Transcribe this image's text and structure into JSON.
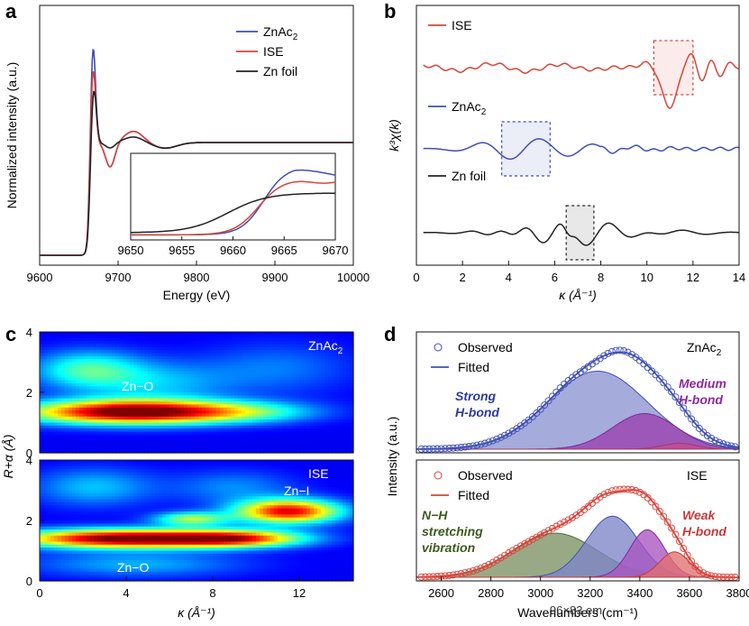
{
  "chart_data": [
    {
      "panel": "a",
      "type": "line",
      "xlabel": "Energy (eV)",
      "ylabel": "Normalized intensity (a.u.)",
      "xlim": [
        9600,
        10000
      ],
      "xticks": [
        "9600",
        "9700",
        "9800",
        "9900",
        "10000"
      ],
      "legend": [
        "ZnAc",
        "ISE",
        "Zn foil"
      ],
      "legend_sub": "2",
      "legend_position": "top-right",
      "series": [
        {
          "name": "ZnAc2",
          "color": "#3f4fb5",
          "peak_energy": 9668,
          "peak": 1.0
        },
        {
          "name": "ISE",
          "color": "#d9433a",
          "peak_energy": 9668,
          "peak": 0.78
        },
        {
          "name": "Zn foil",
          "color": "#222222",
          "peak_energy": 9669,
          "peak": 0.55
        }
      ],
      "inset": {
        "xlim": [
          9650,
          9670
        ],
        "xticks": [
          "9650",
          "9655",
          "9660",
          "9665",
          "9670"
        ]
      }
    },
    {
      "panel": "b",
      "type": "line",
      "xlabel": "κ (Å⁻¹)",
      "ylabel": "k³χ(k)",
      "xlim": [
        0,
        14
      ],
      "xticks": [
        "0",
        "2",
        "4",
        "6",
        "8",
        "10",
        "12",
        "14"
      ],
      "series": [
        {
          "name": "ISE",
          "color": "#d9433a",
          "highlight": [
            10.3,
            12.0
          ]
        },
        {
          "name": "ZnAc",
          "sub": "2",
          "color": "#3f4fb5",
          "highlight": [
            3.7,
            5.8
          ]
        },
        {
          "name": "Zn foil",
          "color": "#222222",
          "highlight": [
            6.5,
            7.7
          ]
        }
      ]
    },
    {
      "panel": "c",
      "type": "heatmap",
      "xlabel": "κ (Å⁻¹)",
      "ylabel": "R+α (Å)",
      "xlim": [
        0,
        14.5
      ],
      "ylim": [
        0,
        4
      ],
      "xticks": [
        "0",
        "4",
        "8",
        "12"
      ],
      "yticks": [
        "0",
        "2",
        "4"
      ],
      "maps": [
        {
          "name": "ZnAc",
          "sub": "2",
          "annotations": [
            "Zn−O"
          ],
          "blobs": [
            {
              "k": 4.2,
              "r": 1.35,
              "sk": 3.4,
              "sr": 0.28,
              "a": 1.0
            },
            {
              "k": 9.5,
              "r": 1.35,
              "sk": 2.5,
              "sr": 0.25,
              "a": 0.25
            },
            {
              "k": 2.2,
              "r": 2.75,
              "sk": 1.8,
              "sr": 0.45,
              "a": 0.34
            },
            {
              "k": 5.5,
              "r": 2.3,
              "sk": 2.4,
              "sr": 0.5,
              "a": 0.2
            },
            {
              "k": 11.0,
              "r": 2.8,
              "sk": 2.5,
              "sr": 0.6,
              "a": 0.14
            }
          ]
        },
        {
          "name": "ISE",
          "annotations": [
            "Zn−I",
            "Zn−O"
          ],
          "blobs": [
            {
              "k": 4.0,
              "r": 1.4,
              "sk": 3.6,
              "sr": 0.22,
              "a": 1.0
            },
            {
              "k": 9.2,
              "r": 1.4,
              "sk": 2.2,
              "sr": 0.2,
              "a": 0.6
            },
            {
              "k": 11.5,
              "r": 2.3,
              "sk": 1.7,
              "sr": 0.28,
              "a": 0.85
            },
            {
              "k": 7.0,
              "r": 2.05,
              "sk": 1.2,
              "sr": 0.16,
              "a": 0.45
            },
            {
              "k": 2.5,
              "r": 3.1,
              "sk": 2.0,
              "sr": 0.45,
              "a": 0.22
            },
            {
              "k": 4.5,
              "r": 0.55,
              "sk": 3.5,
              "sr": 0.3,
              "a": 0.2
            },
            {
              "k": 9.0,
              "r": 3.1,
              "sk": 2.0,
              "sr": 0.4,
              "a": 0.16
            }
          ]
        }
      ]
    },
    {
      "panel": "d",
      "type": "area",
      "xlabel": "Wavenumbers (cm⁻¹)",
      "ylabel": "Intensity (a.u.)",
      "xlim": [
        2500,
        3800
      ],
      "xticks": [
        "2600",
        "2800",
        "3000",
        "3200",
        "3400",
        "3600",
        "3800"
      ],
      "top": {
        "name": "ZnAc",
        "sub": "2",
        "legend": [
          "Observed",
          "Fitted"
        ],
        "labels": [
          "Strong\nH-bond",
          "Medium\nH-bond"
        ],
        "components": [
          {
            "center": 3230,
            "width": 200,
            "amp": 0.92,
            "fill": "#8c93cf",
            "edge": "#3f4fb5"
          },
          {
            "center": 3420,
            "width": 130,
            "amp": 0.42,
            "fill": "#9a3fb0",
            "edge": "#7a2b96"
          },
          {
            "center": 3560,
            "width": 70,
            "amp": 0.07,
            "fill": "#c94a8a",
            "edge": "#a03a70"
          }
        ]
      },
      "bottom": {
        "name": "ISE",
        "legend": [
          "Observed",
          "Fitted"
        ],
        "labels": [
          "N−H\nstretching\nvibration",
          "Weak\nH-bond"
        ],
        "components": [
          {
            "center": 3060,
            "width": 170,
            "amp": 0.52,
            "fill": "#7e9163",
            "edge": "#52663a"
          },
          {
            "center": 3290,
            "width": 105,
            "amp": 0.72,
            "fill": "#7d85c8",
            "edge": "#3f4fb5"
          },
          {
            "center": 3430,
            "width": 70,
            "amp": 0.56,
            "fill": "#a855c0",
            "edge": "#7a2b96"
          },
          {
            "center": 3540,
            "width": 60,
            "amp": 0.3,
            "fill": "#e27070",
            "edge": "#c43b3b"
          }
        ]
      }
    }
  ],
  "labels": {
    "a": "a",
    "b": "b",
    "c": "c",
    "d": "d"
  },
  "size_overlay": "96×83 em"
}
